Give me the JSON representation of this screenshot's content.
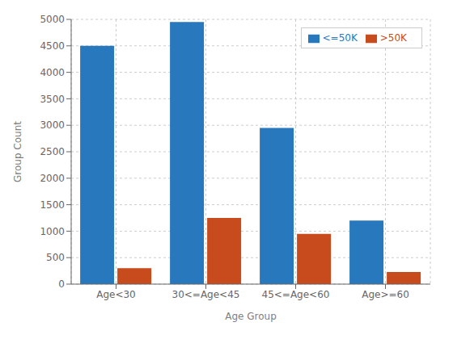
{
  "chart_data": {
    "type": "bar",
    "categories": [
      "Age<30",
      "30<=Age<45",
      "45<=Age<60",
      "Age>=60"
    ],
    "series": [
      {
        "name": "<=50K",
        "color": "#2878be",
        "values": [
          4500,
          4950,
          2950,
          1200
        ]
      },
      {
        "name": ">50K",
        "color": "#c84b1e",
        "values": [
          300,
          1250,
          950,
          230
        ]
      }
    ],
    "xlabel": "Age Group",
    "ylabel": "Group Count",
    "ylim": [
      0,
      5000
    ],
    "yticks": [
      0,
      500,
      1000,
      1500,
      2000,
      2500,
      3000,
      3500,
      4000,
      4500,
      5000
    ],
    "grid": true,
    "legend": "upper right"
  }
}
